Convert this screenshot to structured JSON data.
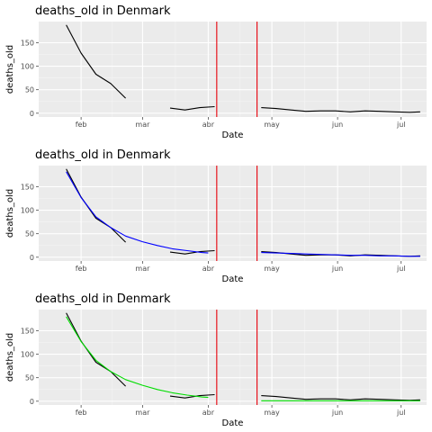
{
  "chart_data": [
    {
      "type": "line",
      "title": "deaths_old in Denmark",
      "xlabel": "Date",
      "ylabel": "deaths_old",
      "x_ticks": [
        "feb",
        "mar",
        "abr",
        "may",
        "jun",
        "jul"
      ],
      "x_tick_dates": [
        "2020-02-01",
        "2020-03-01",
        "2020-04-01",
        "2020-05-01",
        "2020-06-01",
        "2020-07-01"
      ],
      "xlim": [
        "2020-01-12",
        "2020-07-13"
      ],
      "y_ticks": [
        0,
        50,
        100,
        150
      ],
      "ylim": [
        -8,
        195
      ],
      "grid": true,
      "vlines": {
        "dates": [
          "2020-04-05",
          "2020-04-24"
        ],
        "color": "#e8000b"
      },
      "series": [
        {
          "color": "#000000",
          "points": [
            [
              "2020-01-25",
              188
            ],
            [
              "2020-02-01",
              128
            ],
            [
              "2020-02-08",
              83
            ],
            [
              "2020-02-15",
              63
            ],
            [
              "2020-02-22",
              32
            ]
          ]
        },
        {
          "color": "#000000",
          "points": [
            [
              "2020-03-14",
              11
            ],
            [
              "2020-03-21",
              7
            ],
            [
              "2020-03-28",
              12
            ],
            [
              "2020-04-04",
              14
            ]
          ]
        },
        {
          "color": "#000000",
          "points": [
            [
              "2020-04-26",
              12
            ],
            [
              "2020-05-03",
              10
            ],
            [
              "2020-05-10",
              7
            ],
            [
              "2020-05-17",
              4
            ],
            [
              "2020-05-24",
              5
            ],
            [
              "2020-05-31",
              5
            ],
            [
              "2020-06-07",
              3
            ],
            [
              "2020-06-14",
              5
            ],
            [
              "2020-06-21",
              4
            ],
            [
              "2020-06-28",
              3
            ],
            [
              "2020-07-05",
              2
            ],
            [
              "2020-07-10",
              3
            ]
          ]
        }
      ]
    },
    {
      "type": "line",
      "title": "deaths_old in Denmark",
      "xlabel": "Date",
      "ylabel": "deaths_old",
      "x_ticks": [
        "feb",
        "mar",
        "abr",
        "may",
        "jun",
        "jul"
      ],
      "x_tick_dates": [
        "2020-02-01",
        "2020-03-01",
        "2020-04-01",
        "2020-05-01",
        "2020-06-01",
        "2020-07-01"
      ],
      "xlim": [
        "2020-01-12",
        "2020-07-13"
      ],
      "y_ticks": [
        0,
        50,
        100,
        150
      ],
      "ylim": [
        -8,
        195
      ],
      "grid": true,
      "vlines": {
        "dates": [
          "2020-04-05",
          "2020-04-24"
        ],
        "color": "#e8000b"
      },
      "series": [
        {
          "color": "#000000",
          "points": [
            [
              "2020-01-25",
              188
            ],
            [
              "2020-02-01",
              128
            ],
            [
              "2020-02-08",
              83
            ],
            [
              "2020-02-15",
              63
            ],
            [
              "2020-02-22",
              32
            ]
          ]
        },
        {
          "color": "#000000",
          "points": [
            [
              "2020-03-14",
              11
            ],
            [
              "2020-03-21",
              7
            ],
            [
              "2020-03-28",
              12
            ],
            [
              "2020-04-04",
              14
            ]
          ]
        },
        {
          "color": "#000000",
          "points": [
            [
              "2020-04-26",
              12
            ],
            [
              "2020-05-03",
              10
            ],
            [
              "2020-05-10",
              7
            ],
            [
              "2020-05-17",
              4
            ],
            [
              "2020-05-24",
              5
            ],
            [
              "2020-05-31",
              5
            ],
            [
              "2020-06-07",
              3
            ],
            [
              "2020-06-14",
              5
            ],
            [
              "2020-06-21",
              4
            ],
            [
              "2020-06-28",
              3
            ],
            [
              "2020-07-05",
              2
            ],
            [
              "2020-07-10",
              3
            ]
          ]
        },
        {
          "color": "#0000ff",
          "points": [
            [
              "2020-01-25",
              182
            ],
            [
              "2020-02-01",
              127
            ],
            [
              "2020-02-08",
              86
            ],
            [
              "2020-02-15",
              63
            ],
            [
              "2020-02-22",
              45
            ],
            [
              "2020-03-01",
              33
            ],
            [
              "2020-03-08",
              25
            ],
            [
              "2020-03-15",
              18
            ],
            [
              "2020-03-22",
              14
            ],
            [
              "2020-03-29",
              10
            ],
            [
              "2020-04-01",
              9
            ]
          ]
        },
        {
          "color": "#0000ff",
          "points": [
            [
              "2020-04-26",
              10
            ],
            [
              "2020-05-03",
              9
            ],
            [
              "2020-05-10",
              8
            ],
            [
              "2020-05-17",
              7
            ],
            [
              "2020-05-24",
              6
            ],
            [
              "2020-05-31",
              5
            ],
            [
              "2020-06-07",
              4
            ],
            [
              "2020-06-14",
              4
            ],
            [
              "2020-06-21",
              3
            ],
            [
              "2020-06-28",
              3
            ],
            [
              "2020-07-05",
              2
            ],
            [
              "2020-07-10",
              2
            ]
          ]
        }
      ]
    },
    {
      "type": "line",
      "title": "deaths_old in Denmark",
      "xlabel": "Date",
      "ylabel": "deaths_old",
      "x_ticks": [
        "feb",
        "mar",
        "abr",
        "may",
        "jun",
        "jul"
      ],
      "x_tick_dates": [
        "2020-02-01",
        "2020-03-01",
        "2020-04-01",
        "2020-05-01",
        "2020-06-01",
        "2020-07-01"
      ],
      "xlim": [
        "2020-01-12",
        "2020-07-13"
      ],
      "y_ticks": [
        0,
        50,
        100,
        150
      ],
      "ylim": [
        -8,
        195
      ],
      "grid": true,
      "vlines": {
        "dates": [
          "2020-04-05",
          "2020-04-24"
        ],
        "color": "#e8000b"
      },
      "series": [
        {
          "color": "#000000",
          "points": [
            [
              "2020-01-25",
              188
            ],
            [
              "2020-02-01",
              128
            ],
            [
              "2020-02-08",
              83
            ],
            [
              "2020-02-15",
              63
            ],
            [
              "2020-02-22",
              32
            ]
          ]
        },
        {
          "color": "#000000",
          "points": [
            [
              "2020-03-14",
              11
            ],
            [
              "2020-03-21",
              7
            ],
            [
              "2020-03-28",
              12
            ],
            [
              "2020-04-04",
              14
            ]
          ]
        },
        {
          "color": "#000000",
          "points": [
            [
              "2020-04-26",
              12
            ],
            [
              "2020-05-03",
              10
            ],
            [
              "2020-05-10",
              7
            ],
            [
              "2020-05-17",
              4
            ],
            [
              "2020-05-24",
              5
            ],
            [
              "2020-05-31",
              5
            ],
            [
              "2020-06-07",
              3
            ],
            [
              "2020-06-14",
              5
            ],
            [
              "2020-06-21",
              4
            ],
            [
              "2020-06-28",
              3
            ],
            [
              "2020-07-05",
              2
            ],
            [
              "2020-07-10",
              3
            ]
          ]
        },
        {
          "color": "#00dd00",
          "points": [
            [
              "2020-01-25",
              180
            ],
            [
              "2020-02-01",
              127
            ],
            [
              "2020-02-08",
              87
            ],
            [
              "2020-02-15",
              63
            ],
            [
              "2020-02-22",
              46
            ],
            [
              "2020-03-01",
              34
            ],
            [
              "2020-03-08",
              25
            ],
            [
              "2020-03-15",
              18
            ],
            [
              "2020-03-22",
              13
            ],
            [
              "2020-03-29",
              9
            ],
            [
              "2020-04-01",
              8
            ]
          ]
        },
        {
          "color": "#00dd00",
          "points": [
            [
              "2020-04-26",
              1
            ],
            [
              "2020-05-03",
              1
            ],
            [
              "2020-05-10",
              1
            ],
            [
              "2020-05-17",
              1
            ],
            [
              "2020-05-24",
              1
            ],
            [
              "2020-05-31",
              1
            ],
            [
              "2020-06-07",
              1
            ],
            [
              "2020-06-14",
              1
            ],
            [
              "2020-06-21",
              1
            ],
            [
              "2020-06-28",
              1
            ],
            [
              "2020-07-05",
              1
            ],
            [
              "2020-07-10",
              1
            ]
          ]
        }
      ]
    }
  ]
}
